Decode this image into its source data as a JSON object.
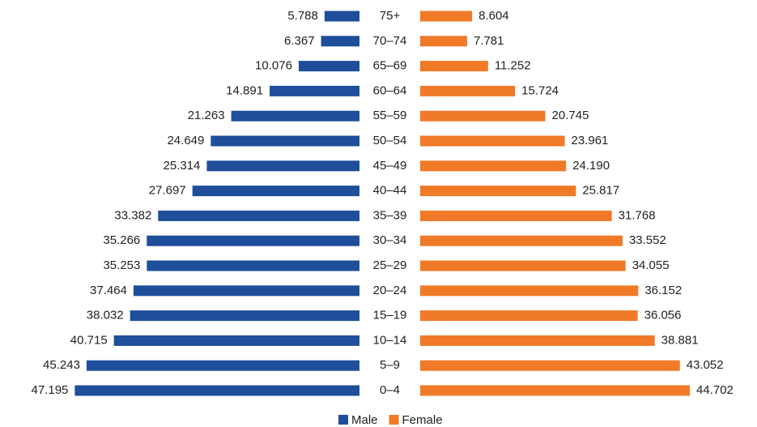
{
  "chart_data": {
    "type": "pyramid",
    "categories": [
      "75+",
      "70–74",
      "65–69",
      "60–64",
      "55–59",
      "50–54",
      "45–49",
      "40–44",
      "35–39",
      "30–34",
      "25–29",
      "20–24",
      "15–19",
      "10–14",
      "5–9",
      "0–4"
    ],
    "series": [
      {
        "name": "Male",
        "color": "#1f4e9a",
        "values": [
          5.788,
          6.367,
          10.076,
          14.891,
          21.263,
          24.649,
          25.314,
          27.697,
          33.382,
          35.266,
          35.253,
          37.464,
          38.032,
          40.715,
          45.243,
          47.195
        ],
        "value_labels": [
          "5.788",
          "6.367",
          "10.076",
          "14.891",
          "21.263",
          "24.649",
          "25.314",
          "27.697",
          "33.382",
          "35.266",
          "35.253",
          "37.464",
          "38.032",
          "40.715",
          "45.243",
          "47.195"
        ]
      },
      {
        "name": "Female",
        "color": "#f07a28",
        "values": [
          8.604,
          7.781,
          11.252,
          15.724,
          20.745,
          23.961,
          24.19,
          25.817,
          31.768,
          33.552,
          34.055,
          36.152,
          36.056,
          38.881,
          43.052,
          44.702
        ],
        "value_labels": [
          "8.604",
          "7.781",
          "11.252",
          "15.724",
          "20.745",
          "23.961",
          "24.190",
          "25.817",
          "31.768",
          "33.552",
          "34.055",
          "36.152",
          "36.056",
          "38.881",
          "43.052",
          "44.702"
        ]
      }
    ],
    "legend": "bottom"
  }
}
